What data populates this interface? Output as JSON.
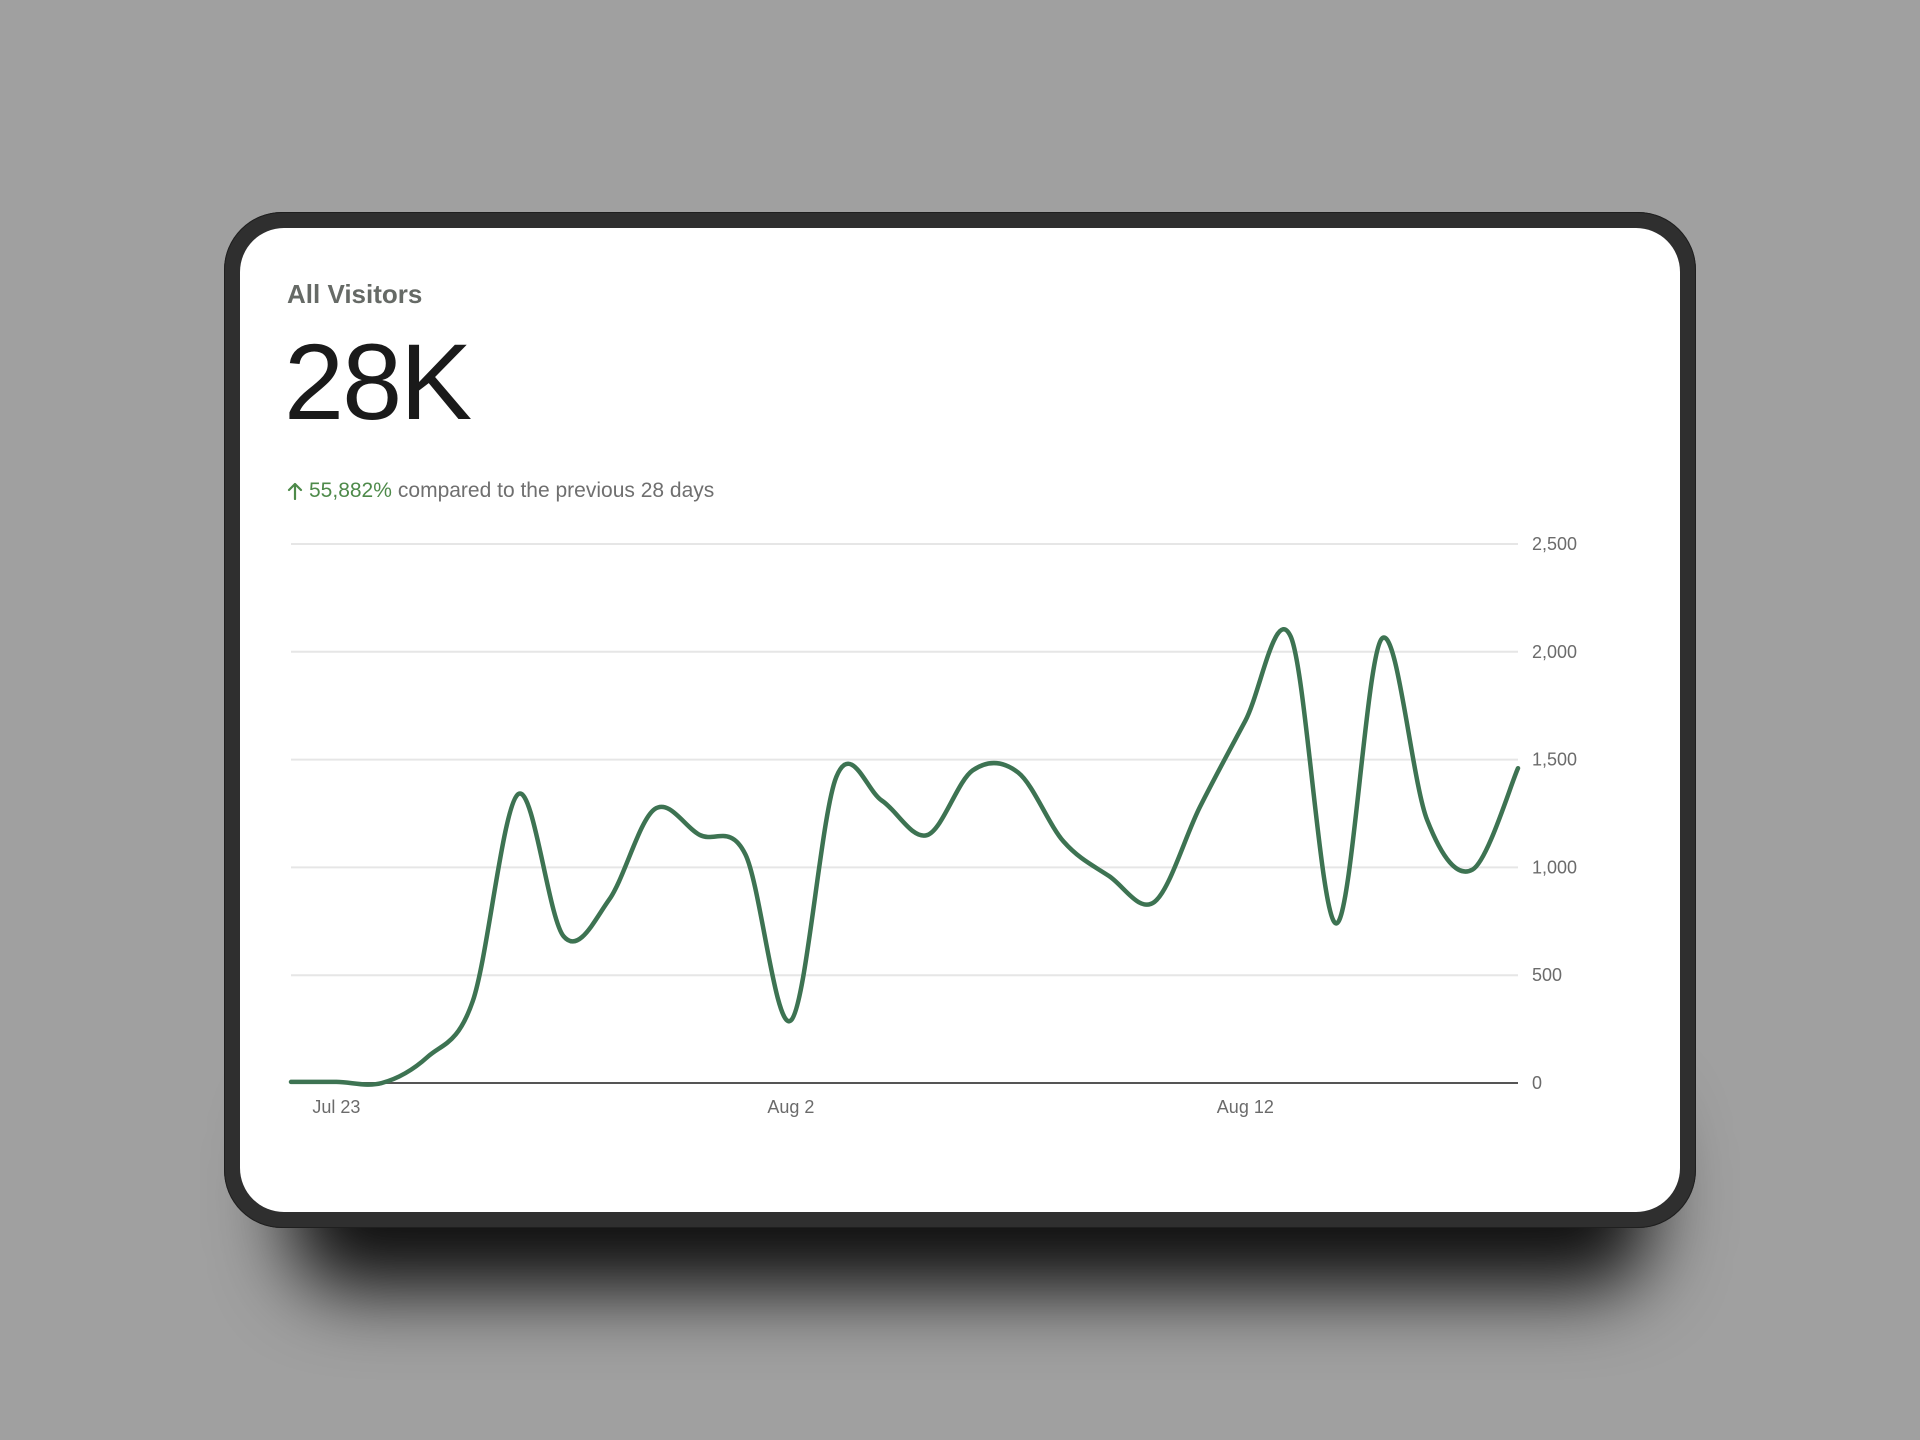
{
  "card": {
    "title": "All Visitors",
    "total": "28K",
    "change": "55,882%",
    "change_direction": "up",
    "compare_text": "compared to the previous 28 days"
  },
  "colors": {
    "line": "#3d7352",
    "increase": "#4e8a4a",
    "grid": "#e6e6e6",
    "baseline": "#555555"
  },
  "chart_data": {
    "type": "line",
    "title": "",
    "xlabel": "",
    "ylabel": "",
    "ylim": [
      0,
      2500
    ],
    "yticks": [
      0,
      500,
      1000,
      1500,
      2000,
      2500
    ],
    "ytick_labels": [
      "0",
      "500",
      "1,000",
      "1,500",
      "2,000",
      "2,500"
    ],
    "xticks": [
      "Jul 23",
      "Aug 2",
      "Aug 12"
    ],
    "y_axis_position": "right",
    "grid": true,
    "legend": "none",
    "series": [
      {
        "x": [
          "Jul 22",
          "Jul 23",
          "Jul 24",
          "Jul 25",
          "Jul 26",
          "Jul 27",
          "Jul 28",
          "Jul 29",
          "Jul 30",
          "Jul 31",
          "Aug 1",
          "Aug 2",
          "Aug 3",
          "Aug 4",
          "Aug 5",
          "Aug 6",
          "Aug 7",
          "Aug 8",
          "Aug 9",
          "Aug 10",
          "Aug 11",
          "Aug 12",
          "Aug 13",
          "Aug 14",
          "Aug 15",
          "Aug 16",
          "Aug 17",
          "Aug 18"
        ],
        "values": [
          5,
          5,
          0,
          120,
          380,
          1340,
          680,
          850,
          1270,
          1150,
          1060,
          290,
          1420,
          1310,
          1150,
          1450,
          1440,
          1120,
          960,
          840,
          1280,
          1680,
          2070,
          740,
          2060,
          1220,
          990,
          1460
        ]
      }
    ]
  }
}
